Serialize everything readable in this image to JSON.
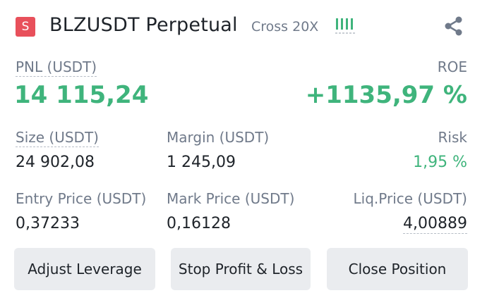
{
  "header": {
    "side_badge": "S",
    "symbol": "BLZUSDT Perpetual",
    "margin_mode": "Cross 20X",
    "strength_icon": "signal-bars-icon",
    "share_icon": "share-icon"
  },
  "pnl": {
    "label": "PNL (USDT)",
    "value": "14 115,24"
  },
  "roe": {
    "label": "ROE",
    "value": "+1135,97 %"
  },
  "size": {
    "label": "Size (USDT)",
    "value": "24 902,08"
  },
  "margin": {
    "label": "Margin (USDT)",
    "value": "1 245,09"
  },
  "risk": {
    "label": "Risk",
    "value": "1,95 %"
  },
  "entry_price": {
    "label": "Entry Price (USDT)",
    "value": "0,37233"
  },
  "mark_price": {
    "label": "Mark Price (USDT)",
    "value": "0,16128"
  },
  "liq_price": {
    "label": "Liq.Price (USDT)",
    "value": "4,00889"
  },
  "buttons": {
    "adjust_leverage": "Adjust Leverage",
    "stop_profit_loss": "Stop Profit & Loss",
    "close_position": "Close Position"
  },
  "colors": {
    "short_badge": "#e8505b",
    "profit_green": "#3fb47c",
    "muted_text": "#707a8a",
    "button_bg": "#eaecef"
  }
}
